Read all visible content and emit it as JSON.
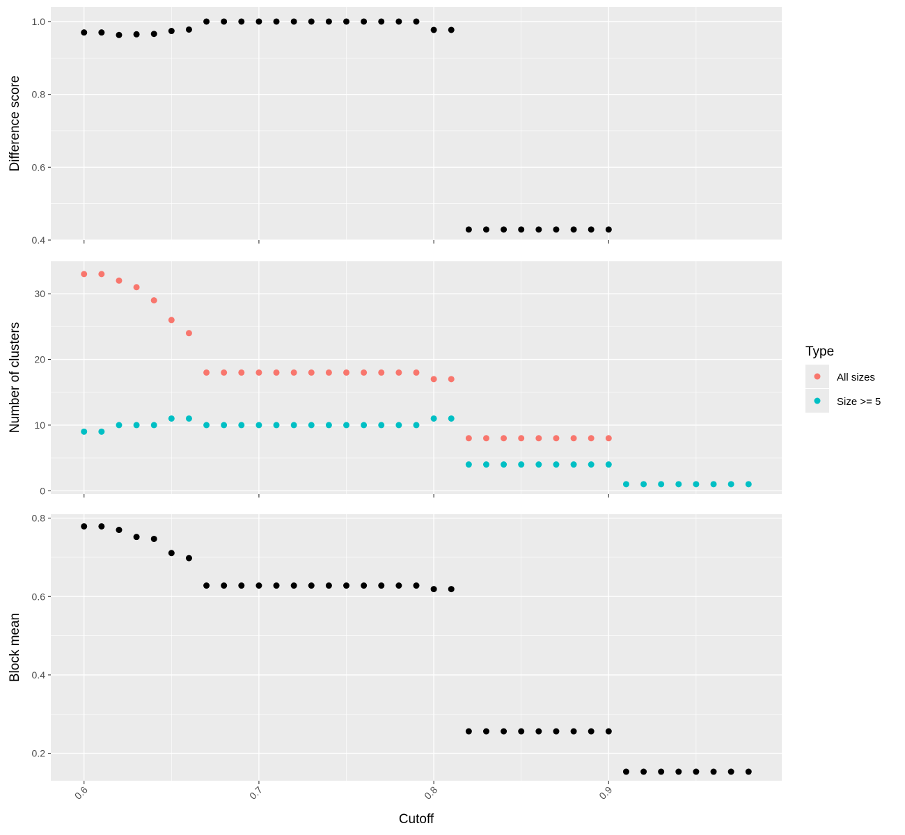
{
  "chart_data": {
    "type": "scatter",
    "x_axis": {
      "label": "Cutoff",
      "lim": [
        0.581,
        0.999
      ],
      "ticks": [
        0.6,
        0.7,
        0.8,
        0.9
      ],
      "tick_labels": [
        "0.6",
        "0.7",
        "0.8",
        "0.9"
      ]
    },
    "panels": [
      {
        "ylabel": "Difference score",
        "ylim": [
          0.4,
          1.04
        ],
        "yticks": [
          0.4,
          0.6,
          0.8,
          1.0
        ],
        "ytick_labels": [
          "0.4",
          "0.6",
          "0.8",
          "1.0"
        ],
        "series": [
          {
            "color": "#000000",
            "x": [
              0.6,
              0.61,
              0.62,
              0.63,
              0.64,
              0.65,
              0.66,
              0.67,
              0.68,
              0.69,
              0.7,
              0.71,
              0.72,
              0.73,
              0.74,
              0.75,
              0.76,
              0.77,
              0.78,
              0.79,
              0.8,
              0.81,
              0.82,
              0.83,
              0.84,
              0.85,
              0.86,
              0.87,
              0.88,
              0.89,
              0.9
            ],
            "y": [
              0.97,
              0.97,
              0.963,
              0.965,
              0.966,
              0.974,
              0.978,
              1.0,
              1.0,
              1.0,
              1.0,
              1.0,
              1.0,
              1.0,
              1.0,
              1.0,
              1.0,
              1.0,
              1.0,
              1.0,
              0.977,
              0.977,
              0.429,
              0.429,
              0.429,
              0.429,
              0.429,
              0.429,
              0.429,
              0.429,
              0.429
            ]
          }
        ]
      },
      {
        "ylabel": "Number of clusters",
        "ylim": [
          -0.5,
          35
        ],
        "yticks": [
          0,
          10,
          20,
          30
        ],
        "ytick_labels": [
          "0",
          "10",
          "20",
          "30"
        ],
        "series": [
          {
            "name": "All sizes",
            "color": "#F8766D",
            "x": [
              0.6,
              0.61,
              0.62,
              0.63,
              0.64,
              0.65,
              0.66,
              0.67,
              0.68,
              0.69,
              0.7,
              0.71,
              0.72,
              0.73,
              0.74,
              0.75,
              0.76,
              0.77,
              0.78,
              0.79,
              0.8,
              0.81,
              0.82,
              0.83,
              0.84,
              0.85,
              0.86,
              0.87,
              0.88,
              0.89,
              0.9
            ],
            "y": [
              33,
              33,
              32,
              31,
              29,
              26,
              24,
              18,
              18,
              18,
              18,
              18,
              18,
              18,
              18,
              18,
              18,
              18,
              18,
              18,
              17,
              17,
              8,
              8,
              8,
              8,
              8,
              8,
              8,
              8,
              8
            ]
          },
          {
            "name": "Size >= 5",
            "color": "#00BFC4",
            "x": [
              0.6,
              0.61,
              0.62,
              0.63,
              0.64,
              0.65,
              0.66,
              0.67,
              0.68,
              0.69,
              0.7,
              0.71,
              0.72,
              0.73,
              0.74,
              0.75,
              0.76,
              0.77,
              0.78,
              0.79,
              0.8,
              0.81,
              0.82,
              0.83,
              0.84,
              0.85,
              0.86,
              0.87,
              0.88,
              0.89,
              0.9,
              0.91,
              0.92,
              0.93,
              0.94,
              0.95,
              0.96,
              0.97,
              0.98
            ],
            "y": [
              9,
              9,
              10,
              10,
              10,
              11,
              11,
              10,
              10,
              10,
              10,
              10,
              10,
              10,
              10,
              10,
              10,
              10,
              10,
              10,
              11,
              11,
              4,
              4,
              4,
              4,
              4,
              4,
              4,
              4,
              4,
              1,
              1,
              1,
              1,
              1,
              1,
              1,
              1
            ]
          }
        ]
      },
      {
        "ylabel": "Block mean",
        "ylim": [
          0.13,
          0.81
        ],
        "yticks": [
          0.2,
          0.4,
          0.6,
          0.8
        ],
        "ytick_labels": [
          "0.2",
          "0.4",
          "0.6",
          "0.8"
        ],
        "series": [
          {
            "color": "#000000",
            "x": [
              0.6,
              0.61,
              0.62,
              0.63,
              0.64,
              0.65,
              0.66,
              0.67,
              0.68,
              0.69,
              0.7,
              0.71,
              0.72,
              0.73,
              0.74,
              0.75,
              0.76,
              0.77,
              0.78,
              0.79,
              0.8,
              0.81,
              0.82,
              0.83,
              0.84,
              0.85,
              0.86,
              0.87,
              0.88,
              0.89,
              0.9,
              0.91,
              0.92,
              0.93,
              0.94,
              0.95,
              0.96,
              0.97,
              0.98
            ],
            "y": [
              0.779,
              0.779,
              0.77,
              0.752,
              0.747,
              0.711,
              0.698,
              0.628,
              0.628,
              0.628,
              0.628,
              0.628,
              0.628,
              0.628,
              0.628,
              0.628,
              0.628,
              0.628,
              0.628,
              0.628,
              0.619,
              0.619,
              0.256,
              0.256,
              0.256,
              0.256,
              0.256,
              0.256,
              0.256,
              0.256,
              0.256,
              0.153,
              0.153,
              0.153,
              0.153,
              0.153,
              0.153,
              0.153,
              0.153
            ]
          }
        ]
      }
    ],
    "legend": {
      "title": "Type",
      "position": "right",
      "items": [
        {
          "label": "All sizes",
          "color": "#F8766D"
        },
        {
          "label": "Size >= 5",
          "color": "#00BFC4"
        }
      ]
    },
    "grid": true,
    "panel_background": "#EBEBEB"
  }
}
